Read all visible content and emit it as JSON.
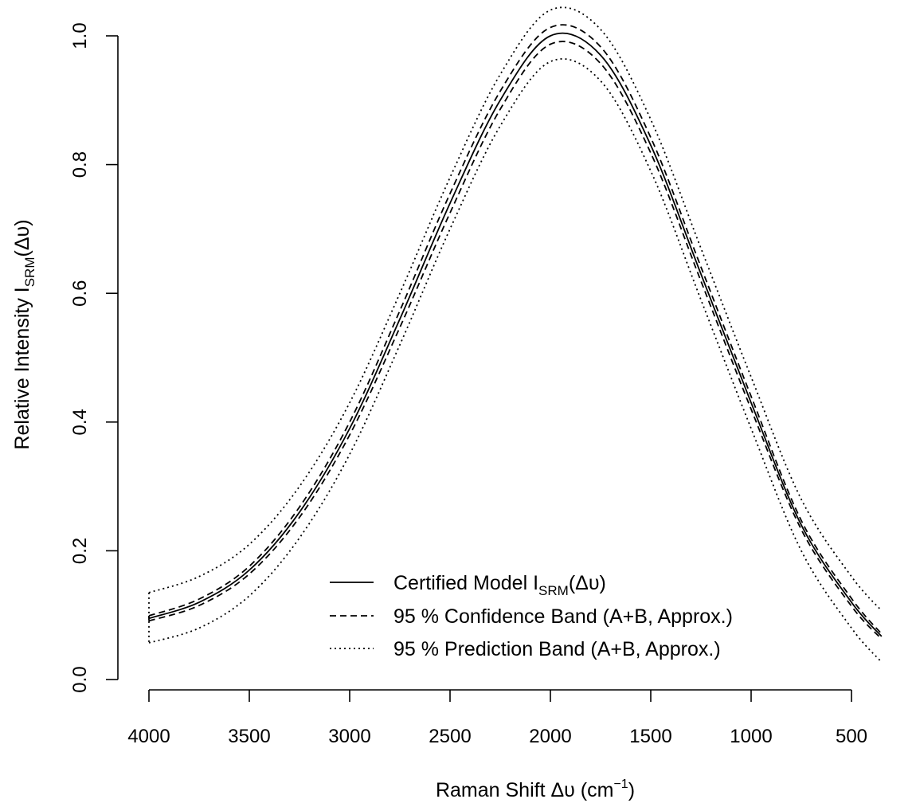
{
  "chart_data": {
    "type": "line",
    "xlabel_main": "Raman Shift Δυ (cm",
    "xlabel_sup": "−1",
    "xlabel_close": ")",
    "ylabel_main": "Relative Intensity I",
    "ylabel_sub": "SRM",
    "ylabel_tail": "(Δυ)",
    "x_reversed": true,
    "xlim": [
      4000,
      500
    ],
    "ylim": [
      0.0,
      1.0
    ],
    "x_ticks": [
      4000,
      3500,
      3000,
      2500,
      2000,
      1500,
      1000,
      500
    ],
    "x_tick_labels": [
      "4000",
      "3500",
      "3000",
      "2500",
      "2000",
      "1500",
      "1000",
      "500"
    ],
    "y_ticks": [
      0.0,
      0.2,
      0.4,
      0.6,
      0.8,
      1.0
    ],
    "y_tick_labels": [
      "0.0",
      "0.2",
      "0.4",
      "0.6",
      "0.8",
      "1.0"
    ],
    "grid": false,
    "legend_position": "bottom-center",
    "x": [
      4000,
      3750,
      3500,
      3250,
      3000,
      2750,
      2500,
      2250,
      2000,
      1750,
      1500,
      1250,
      1000,
      750,
      500,
      350
    ],
    "series": [
      {
        "name": "Certified Model I",
        "name_sub": "SRM",
        "name_tail": "(Δυ)",
        "style": "solid",
        "values": [
          0.095,
          0.12,
          0.17,
          0.26,
          0.39,
          0.56,
          0.74,
          0.9,
          1.0,
          0.97,
          0.83,
          0.63,
          0.43,
          0.24,
          0.12,
          0.067
        ]
      },
      {
        "name": "95 % Confidence Band (A+B, Approx.)",
        "style": "dashed",
        "band": "upper",
        "values": [
          0.099,
          0.125,
          0.176,
          0.268,
          0.4,
          0.573,
          0.755,
          0.914,
          1.013,
          0.983,
          0.842,
          0.641,
          0.44,
          0.247,
          0.126,
          0.071
        ]
      },
      {
        "name": "95 % Confidence Band (A+B, Approx.)",
        "style": "dashed",
        "band": "lower",
        "values": [
          0.091,
          0.115,
          0.164,
          0.252,
          0.38,
          0.547,
          0.725,
          0.886,
          0.987,
          0.957,
          0.818,
          0.619,
          0.42,
          0.233,
          0.114,
          0.063
        ]
      },
      {
        "name": "95 % Prediction Band (A+B, Approx.)",
        "style": "dotted",
        "band": "upper",
        "values": [
          0.135,
          0.16,
          0.21,
          0.3,
          0.43,
          0.6,
          0.78,
          0.94,
          1.04,
          1.01,
          0.87,
          0.67,
          0.47,
          0.28,
          0.16,
          0.107
        ]
      },
      {
        "name": "95 % Prediction Band (A+B, Approx.)",
        "style": "dotted",
        "band": "lower",
        "values": [
          0.057,
          0.08,
          0.13,
          0.22,
          0.35,
          0.52,
          0.7,
          0.86,
          0.96,
          0.93,
          0.79,
          0.59,
          0.39,
          0.2,
          0.08,
          0.027
        ]
      }
    ]
  }
}
